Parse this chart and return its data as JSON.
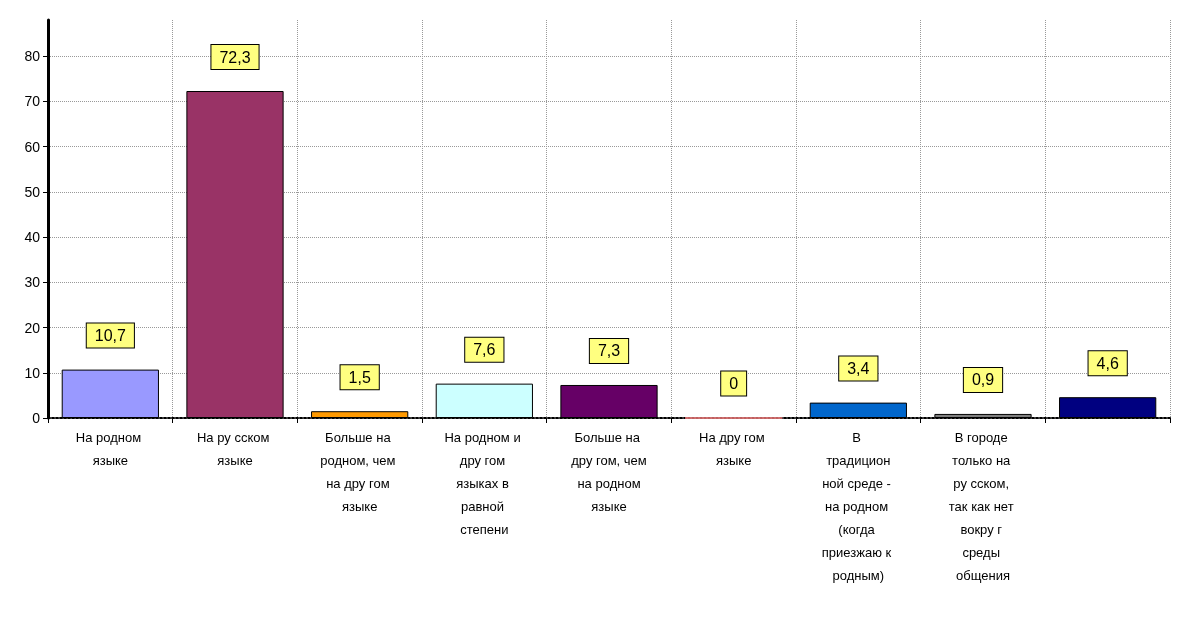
{
  "chart_data": {
    "type": "bar",
    "categories": [
      "На родном языке",
      "На ру сском языке",
      "Больше на родном, чем на дру гом языке",
      "На родном и дру гом языках в равной степени",
      "Больше на дру гом, чем на родном языке",
      "На дру гом языке",
      "В традиционной среде - на родном (когда приезжаю к родным)",
      "В городе только на ру сском, так как нет вокру г среды общения",
      null
    ],
    "values": [
      10.7,
      72.3,
      1.5,
      7.6,
      7.3,
      0,
      3.4,
      0.9,
      4.6
    ],
    "value_labels": [
      "10,7",
      "72,3",
      "1,5",
      "7,6",
      "7,3",
      "0",
      "3,4",
      "0,9",
      "4,6"
    ],
    "colors": [
      "#9999ff",
      "#993366",
      "#ff9900",
      "#ccffff",
      "#660066",
      "#ff8080",
      "#0066cc",
      "#808080",
      "#000080"
    ],
    "ylim": [
      0,
      88
    ],
    "yticks": [
      0,
      10,
      20,
      30,
      40,
      50,
      60,
      70,
      80
    ],
    "grid": true
  }
}
